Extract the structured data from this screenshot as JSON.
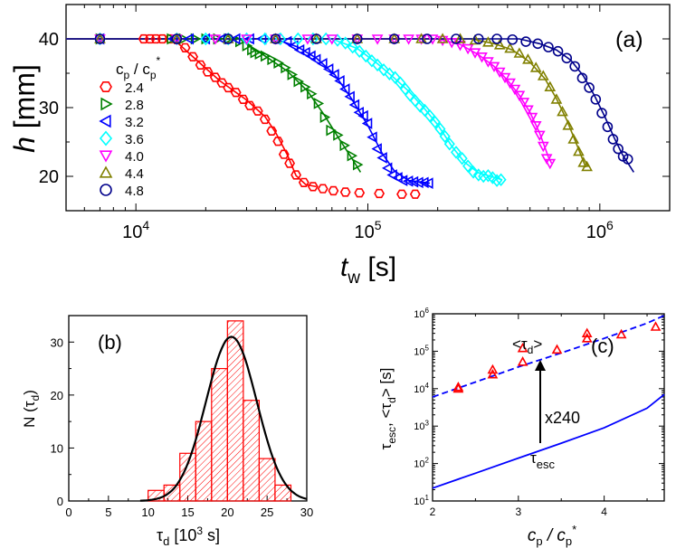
{
  "chart_data": [
    {
      "type": "scatter",
      "panel_label": "(a)",
      "ylabel": "h [mm]",
      "xlabel": "t",
      "xlabel_sub": "w",
      "xlabel_unit": "[s]",
      "xscale": "log",
      "xlim": [
        5000,
        2000000
      ],
      "ylim": [
        15,
        45
      ],
      "xticks": [
        {
          "v": 10000,
          "base": "10",
          "exp": "4"
        },
        {
          "v": 100000,
          "base": "10",
          "exp": "5"
        },
        {
          "v": 1000000,
          "base": "10",
          "exp": "6"
        }
      ],
      "yticks": [
        20,
        30,
        40
      ],
      "legend_title": "c",
      "legend_title_sub": "p",
      "legend_title_sep": " / c",
      "legend_title_sub2": "p",
      "legend_title_sup": "*",
      "legend_position": "left",
      "series": [
        {
          "name": "2.4",
          "color": "#ff0000",
          "marker": "hexagon",
          "x": [
            7000,
            10800,
            11500,
            12200,
            13000,
            14000,
            15000,
            16300,
            17600,
            19000,
            20400,
            22000,
            23500,
            25000,
            27000,
            29000,
            31000,
            33500,
            36000,
            38500,
            41000,
            43500,
            46000,
            49000,
            53000,
            58000,
            64000,
            71000,
            80000,
            92000,
            112000,
            140000,
            160000
          ],
          "y": [
            40,
            40,
            40,
            40,
            40,
            40,
            39.9,
            38.7,
            37.4,
            36.2,
            35.2,
            34.4,
            33.6,
            32.9,
            32.2,
            31.2,
            30.3,
            29.5,
            28.3,
            26.6,
            25.1,
            23.2,
            21.9,
            20.2,
            19.1,
            18.5,
            18.2,
            17.9,
            17.7,
            17.6,
            17.5,
            17.4,
            17.4
          ],
          "fit_x": [
            5000,
            14500,
            18000,
            23000,
            30000,
            36000,
            40000,
            45000,
            49000,
            54000,
            60000
          ],
          "fit_y": [
            40,
            40,
            37.1,
            33.9,
            31.1,
            28.7,
            26.4,
            23.1,
            20.1,
            18.8,
            18.5
          ]
        },
        {
          "name": "2.8",
          "color": "#008000",
          "marker": "triangle-right",
          "x": [
            7000,
            14200,
            16000,
            18000,
            20000,
            22500,
            25000,
            28000,
            30000,
            31500,
            32500,
            34000,
            36000,
            38500,
            41000,
            44000,
            47000,
            50000,
            53500,
            57000,
            61000,
            65000,
            69000,
            74000,
            79000,
            85000,
            90000
          ],
          "y": [
            40,
            40,
            40,
            40,
            40,
            40,
            40,
            39.6,
            39.0,
            38.4,
            38.0,
            37.8,
            37.5,
            37.0,
            36.5,
            35.8,
            34.8,
            33.8,
            33.0,
            32.0,
            30.6,
            28.6,
            26.7,
            26.0,
            24.5,
            23.0,
            21.7
          ],
          "fit_x": [
            5000,
            28000,
            35000,
            45000,
            55000,
            65000,
            75000,
            85000,
            93000
          ],
          "fit_y": [
            40,
            40,
            37.8,
            35.3,
            32.4,
            28.9,
            25.5,
            22.7,
            20.6
          ]
        },
        {
          "name": "3.2",
          "color": "#0000ff",
          "marker": "triangle-left",
          "x": [
            7000,
            14500,
            17000,
            20000,
            23500,
            27000,
            31000,
            35000,
            40000,
            45000,
            48000,
            51000,
            54000,
            57000,
            60000,
            64000,
            68000,
            72000,
            76000,
            80000,
            84000,
            88000,
            92000,
            96000,
            100000,
            105000,
            110000,
            116000,
            122000,
            128000,
            135000,
            142000,
            150000,
            158000,
            166000,
            175000,
            183000
          ],
          "y": [
            40,
            40,
            40,
            40,
            40,
            40,
            40,
            40,
            40,
            39.6,
            39.0,
            38.4,
            38.0,
            37.5,
            37.0,
            36.4,
            35.6,
            34.8,
            33.9,
            32.7,
            31.6,
            30.4,
            29.3,
            28.8,
            27.7,
            25.7,
            24.0,
            22.7,
            21.2,
            20.2,
            19.8,
            19.4,
            19.3,
            19.2,
            19.1,
            19.1,
            19.0
          ],
          "fit_x": [
            5000,
            40000,
            50000,
            60000,
            72000,
            85000,
            100000,
            115000,
            130000,
            150000,
            185000
          ],
          "fit_y": [
            40,
            40,
            38.8,
            37.2,
            34.8,
            31.3,
            27.4,
            23.4,
            20.8,
            19.4,
            19.0
          ]
        },
        {
          "name": "3.6",
          "color": "#00ffff",
          "marker": "diamond",
          "x": [
            7000,
            15000,
            20000,
            25000,
            30000,
            36000,
            42000,
            50000,
            58000,
            66000,
            74000,
            80000,
            86000,
            92000,
            98000,
            104000,
            110000,
            117000,
            124000,
            131000,
            138000,
            145000,
            152000,
            160000,
            168000,
            176000,
            185000,
            195000,
            205000,
            215000,
            225000,
            240000,
            255000,
            270000,
            285000,
            300000,
            315000,
            330000,
            345000,
            360000,
            375000
          ],
          "y": [
            40,
            40,
            40,
            40,
            40,
            40,
            40,
            40,
            40,
            40,
            39.8,
            39.4,
            38.8,
            38.2,
            37.5,
            36.8,
            36.2,
            35.5,
            34.9,
            34.4,
            33.6,
            32.7,
            31.8,
            31.0,
            30.2,
            29.6,
            28.8,
            27.9,
            26.9,
            25.8,
            24.7,
            23.5,
            22.6,
            21.5,
            20.6,
            20.2,
            20.0,
            20.1,
            19.8,
            19.4,
            19.5
          ],
          "fit_x": [
            5000,
            70000,
            90000,
            110000,
            130000,
            150000,
            175000,
            200000,
            230000,
            260000,
            300000,
            380000
          ],
          "fit_y": [
            40,
            40,
            38.6,
            36.4,
            34.3,
            32.4,
            29.9,
            27.5,
            24.4,
            22.1,
            20.5,
            19.5
          ]
        },
        {
          "name": "4.0",
          "color": "#ff00ff",
          "marker": "triangle-down",
          "x": [
            7000,
            15000,
            22000,
            30000,
            40000,
            55000,
            70000,
            90000,
            110000,
            130000,
            150000,
            170000,
            190000,
            210000,
            230000,
            250000,
            270000,
            290000,
            310000,
            330000,
            350000,
            370000,
            390000,
            410000,
            430000,
            450000,
            470000,
            490000,
            510000,
            530000,
            550000,
            570000,
            590000,
            610000
          ],
          "y": [
            40,
            40,
            40,
            40,
            40,
            40,
            40,
            40,
            40,
            40,
            40,
            40,
            40,
            39.8,
            39.5,
            39.1,
            38.6,
            38.0,
            37.4,
            36.7,
            36.0,
            35.2,
            34.4,
            33.6,
            32.7,
            31.8,
            30.8,
            29.7,
            28.6,
            27.4,
            26.0,
            24.4,
            22.6,
            21.9
          ],
          "fit_x": [
            5000,
            200000,
            250000,
            300000,
            350000,
            400000,
            450000,
            500000,
            550000,
            600000,
            620000
          ],
          "fit_y": [
            40,
            40,
            39.2,
            37.7,
            36.0,
            34.0,
            31.8,
            29.3,
            26.3,
            22.8,
            21.9
          ]
        },
        {
          "name": "4.4",
          "color": "#808000",
          "marker": "triangle-up",
          "x": [
            7000,
            15000,
            25000,
            40000,
            60000,
            90000,
            130000,
            170000,
            210000,
            250000,
            290000,
            330000,
            370000,
            410000,
            450000,
            490000,
            530000,
            570000,
            610000,
            650000,
            690000,
            730000,
            770000,
            810000,
            850000,
            880000
          ],
          "y": [
            40,
            40,
            40,
            40,
            40,
            40,
            40,
            40,
            40,
            40,
            39.8,
            39.5,
            39.1,
            38.6,
            37.9,
            37.0,
            35.8,
            34.6,
            33.0,
            31.2,
            29.4,
            27.4,
            25.4,
            23.6,
            22.0,
            21.4
          ],
          "fit_x": [
            5000,
            280000,
            350000,
            420000,
            500000,
            580000,
            650000,
            720000,
            800000,
            870000
          ],
          "fit_y": [
            40,
            40,
            39.3,
            38.4,
            36.6,
            34.2,
            31.3,
            28.2,
            24.4,
            21.3
          ]
        },
        {
          "name": "4.8",
          "color": "#00008b",
          "marker": "circle",
          "x": [
            7000,
            15000,
            25000,
            40000,
            60000,
            90000,
            130000,
            180000,
            240000,
            300000,
            360000,
            420000,
            480000,
            540000,
            600000,
            660000,
            720000,
            780000,
            840000,
            900000,
            960000,
            1020000,
            1080000,
            1140000,
            1200000,
            1260000,
            1320000
          ],
          "y": [
            40,
            40,
            40,
            40,
            40,
            40,
            40,
            40,
            40,
            40,
            40,
            39.9,
            39.6,
            39.3,
            38.8,
            38.2,
            37.2,
            36.0,
            34.3,
            32.9,
            31.2,
            29.2,
            27.2,
            25.4,
            24.0,
            22.9,
            22.5
          ],
          "fit_x": [
            5000,
            450000,
            550000,
            650000,
            750000,
            850000,
            950000,
            1050000,
            1150000,
            1250000,
            1400000
          ],
          "fit_y": [
            40,
            40,
            39.3,
            38.4,
            36.9,
            34.6,
            31.7,
            28.7,
            25.7,
            23.2,
            20.6
          ]
        }
      ]
    },
    {
      "type": "bar",
      "panel_label": "(b)",
      "ylabel": "N (τ",
      "ylabel_sub": "d",
      "ylabel_tail": ")",
      "xlabel": "τ",
      "xlabel_sub": "d",
      "xlabel_unit": " [10",
      "xlabel_sup": "3",
      "xlabel_tail": " s]",
      "xlim": [
        0,
        30
      ],
      "ylim": [
        0,
        35
      ],
      "xticks": [
        0,
        5,
        10,
        15,
        20,
        25,
        30
      ],
      "yticks": [
        0,
        10,
        20,
        30
      ],
      "bar_color": "#ff0000",
      "bins": [
        [
          10,
          12,
          2
        ],
        [
          12,
          14,
          3
        ],
        [
          14,
          16,
          9
        ],
        [
          16,
          18,
          15
        ],
        [
          18,
          20,
          25
        ],
        [
          20,
          22,
          34
        ],
        [
          22,
          24,
          19
        ],
        [
          24,
          26,
          8
        ],
        [
          26,
          28,
          3
        ]
      ],
      "fit": {
        "type": "gaussian",
        "amplitude": 31,
        "mean": 20.5,
        "sigma": 3.2,
        "color": "#000000"
      }
    },
    {
      "type": "line",
      "panel_label": "(c)",
      "ylabel": "τ",
      "ylabel_sub": "esc",
      "ylabel_mid": ", <τ",
      "ylabel_sub2": "d",
      "ylabel_tail": "> [s]",
      "xlabel": "c",
      "xlabel_sub": "p",
      "xlabel_sep": " / c",
      "xlabel_sub2": "p",
      "xlabel_sup": "*",
      "yscale": "log",
      "xlim": [
        2,
        4.7
      ],
      "ylim": [
        10,
        1000000
      ],
      "xticks": [
        2,
        3,
        4
      ],
      "yticks": [
        {
          "v": 10,
          "base": "10",
          "exp": "1"
        },
        {
          "v": 100,
          "base": "10",
          "exp": "2"
        },
        {
          "v": 1000,
          "base": "10",
          "exp": "3"
        },
        {
          "v": 10000,
          "base": "10",
          "exp": "4"
        },
        {
          "v": 100000,
          "base": "10",
          "exp": "5"
        },
        {
          "v": 1000000,
          "base": "10",
          "exp": "6"
        }
      ],
      "series": [
        {
          "name": "<τd>",
          "style": "dashed",
          "color": "#0000ff",
          "x": [
            2.0,
            2.5,
            3.0,
            3.5,
            4.0,
            4.5,
            4.7
          ],
          "y": [
            6000,
            15000,
            38000,
            90000,
            220000,
            560000,
            900000
          ]
        },
        {
          "name": "τesc",
          "style": "solid",
          "color": "#0000ff",
          "x": [
            2.0,
            2.5,
            3.0,
            3.5,
            4.0,
            4.5,
            4.7
          ],
          "y": [
            22,
            55,
            140,
            350,
            900,
            3000,
            7000
          ]
        },
        {
          "name": "data",
          "style": "marker",
          "marker": "triangle-up",
          "color": "#ff0000",
          "x": [
            2.3,
            2.3,
            2.7,
            2.7,
            3.05,
            3.05,
            3.45,
            3.8,
            3.8,
            4.2,
            4.6
          ],
          "y": [
            10000,
            11000,
            24000,
            32000,
            52000,
            120000,
            110000,
            220000,
            300000,
            280000,
            450000
          ]
        }
      ],
      "annotations": {
        "upper_label": "<τ",
        "upper_label_sub": "d",
        "upper_label_tail": ">",
        "factor_label": "x240",
        "lower_label": "τ",
        "lower_label_sub": "esc"
      }
    }
  ]
}
